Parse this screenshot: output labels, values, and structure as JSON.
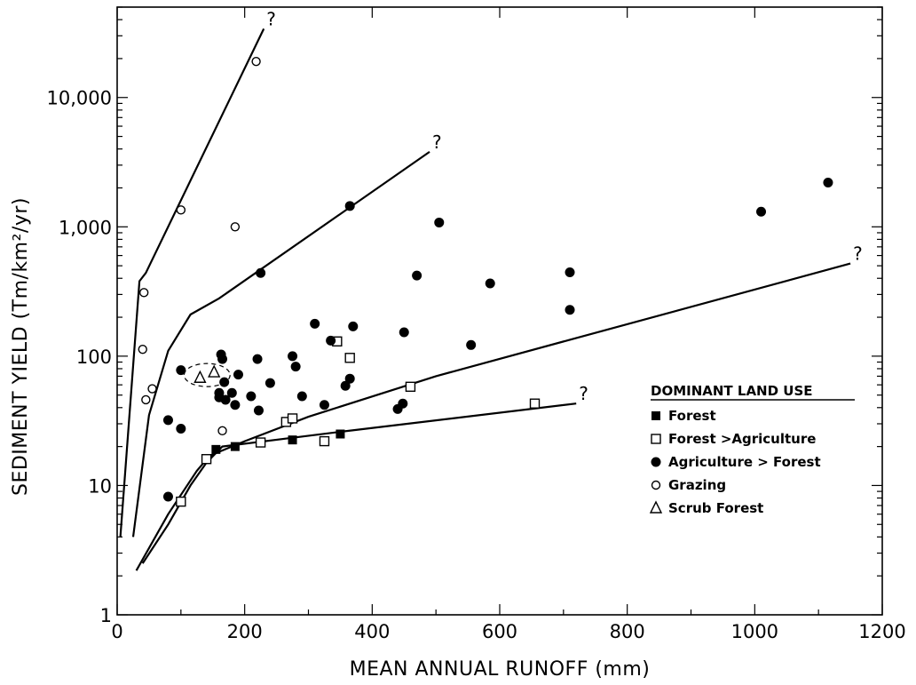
{
  "chart_data": {
    "type": "scatter",
    "xlabel": "MEAN ANNUAL RUNOFF (mm)",
    "ylabel": "SEDIMENT YIELD (Tm/km²/yr)",
    "xlim": [
      0,
      1200
    ],
    "ylim": [
      1,
      50000
    ],
    "yscale": "log",
    "grid": false,
    "xticks": [
      0,
      200,
      400,
      600,
      800,
      1000,
      1200
    ],
    "xtick_labels": [
      "0",
      "200",
      "400",
      "600",
      "800",
      "1000",
      "1200"
    ],
    "yticks": [
      1,
      10,
      100,
      1000,
      10000
    ],
    "ytick_labels": [
      "1",
      "10",
      "100",
      "1,000",
      "10,000"
    ],
    "legend": {
      "title": "DOMINANT LAND USE",
      "position": "right",
      "entries": [
        {
          "label": "Forest",
          "marker": "filled-square"
        },
        {
          "label": "Forest >Agriculture",
          "marker": "open-square"
        },
        {
          "label": "Agriculture > Forest",
          "marker": "filled-circle"
        },
        {
          "label": "Grazing",
          "marker": "open-circle"
        },
        {
          "label": "Scrub Forest",
          "marker": "open-triangle"
        }
      ]
    },
    "series": [
      {
        "name": "Forest",
        "marker": "filled-square",
        "points": [
          [
            155,
            19
          ],
          [
            185,
            20
          ],
          [
            275,
            22.5
          ],
          [
            350,
            25
          ]
        ]
      },
      {
        "name": "Forest >Agriculture",
        "marker": "open-square",
        "points": [
          [
            100,
            7.5
          ],
          [
            140,
            16
          ],
          [
            225,
            21.5
          ],
          [
            265,
            31
          ],
          [
            275,
            33
          ],
          [
            325,
            22
          ],
          [
            345,
            130
          ],
          [
            365,
            97
          ],
          [
            460,
            58
          ],
          [
            655,
            43
          ]
        ]
      },
      {
        "name": "Agriculture > Forest",
        "marker": "filled-circle",
        "points": [
          [
            80,
            8.2
          ],
          [
            80,
            32
          ],
          [
            100,
            78
          ],
          [
            100,
            27.5
          ],
          [
            160,
            52
          ],
          [
            160,
            48
          ],
          [
            163,
            103
          ],
          [
            165,
            95
          ],
          [
            168,
            63
          ],
          [
            170,
            46
          ],
          [
            180,
            52
          ],
          [
            185,
            42
          ],
          [
            190,
            72
          ],
          [
            210,
            49
          ],
          [
            220,
            95
          ],
          [
            222,
            38
          ],
          [
            225,
            440
          ],
          [
            240,
            62
          ],
          [
            275,
            100
          ],
          [
            280,
            83
          ],
          [
            290,
            49
          ],
          [
            310,
            178
          ],
          [
            325,
            42
          ],
          [
            335,
            132
          ],
          [
            358,
            59
          ],
          [
            365,
            67
          ],
          [
            365,
            1450
          ],
          [
            370,
            170
          ],
          [
            440,
            39
          ],
          [
            448,
            43
          ],
          [
            450,
            153
          ],
          [
            470,
            420
          ],
          [
            505,
            1080
          ],
          [
            555,
            122
          ],
          [
            585,
            365
          ],
          [
            710,
            445
          ],
          [
            710,
            228
          ],
          [
            1010,
            1310
          ],
          [
            1115,
            2200
          ]
        ]
      },
      {
        "name": "Grazing",
        "marker": "open-circle",
        "points": [
          [
            40,
            113
          ],
          [
            42,
            310
          ],
          [
            45,
            46
          ],
          [
            55,
            56
          ],
          [
            100,
            1350
          ],
          [
            165,
            26.5
          ],
          [
            185,
            1000
          ],
          [
            218,
            19000
          ]
        ]
      },
      {
        "name": "Scrub Forest",
        "marker": "open-triangle",
        "points": [
          [
            130,
            68
          ],
          [
            152,
            75
          ]
        ]
      }
    ],
    "curves": [
      {
        "points": [
          [
            5,
            4
          ],
          [
            35,
            380
          ],
          [
            45,
            440
          ],
          [
            230,
            34000
          ]
        ],
        "end_label": "?"
      },
      {
        "points": [
          [
            25,
            4
          ],
          [
            50,
            35
          ],
          [
            80,
            110
          ],
          [
            115,
            210
          ],
          [
            160,
            280
          ],
          [
            490,
            3800
          ]
        ],
        "end_label": "?"
      },
      {
        "points": [
          [
            30,
            2.2
          ],
          [
            80,
            6
          ],
          [
            125,
            13
          ],
          [
            145,
            17
          ],
          [
            200,
            22
          ],
          [
            300,
            34
          ],
          [
            500,
            70
          ],
          [
            1150,
            520
          ]
        ],
        "end_label": "?"
      },
      {
        "points": [
          [
            40,
            2.5
          ],
          [
            80,
            5
          ],
          [
            115,
            10
          ],
          [
            140,
            15
          ],
          [
            165,
            20
          ],
          [
            350,
            26
          ],
          [
            720,
            43
          ]
        ],
        "end_label": "?"
      }
    ],
    "annotations": [
      {
        "type": "dashed-ellipse",
        "around": "Scrub Forest"
      }
    ]
  }
}
